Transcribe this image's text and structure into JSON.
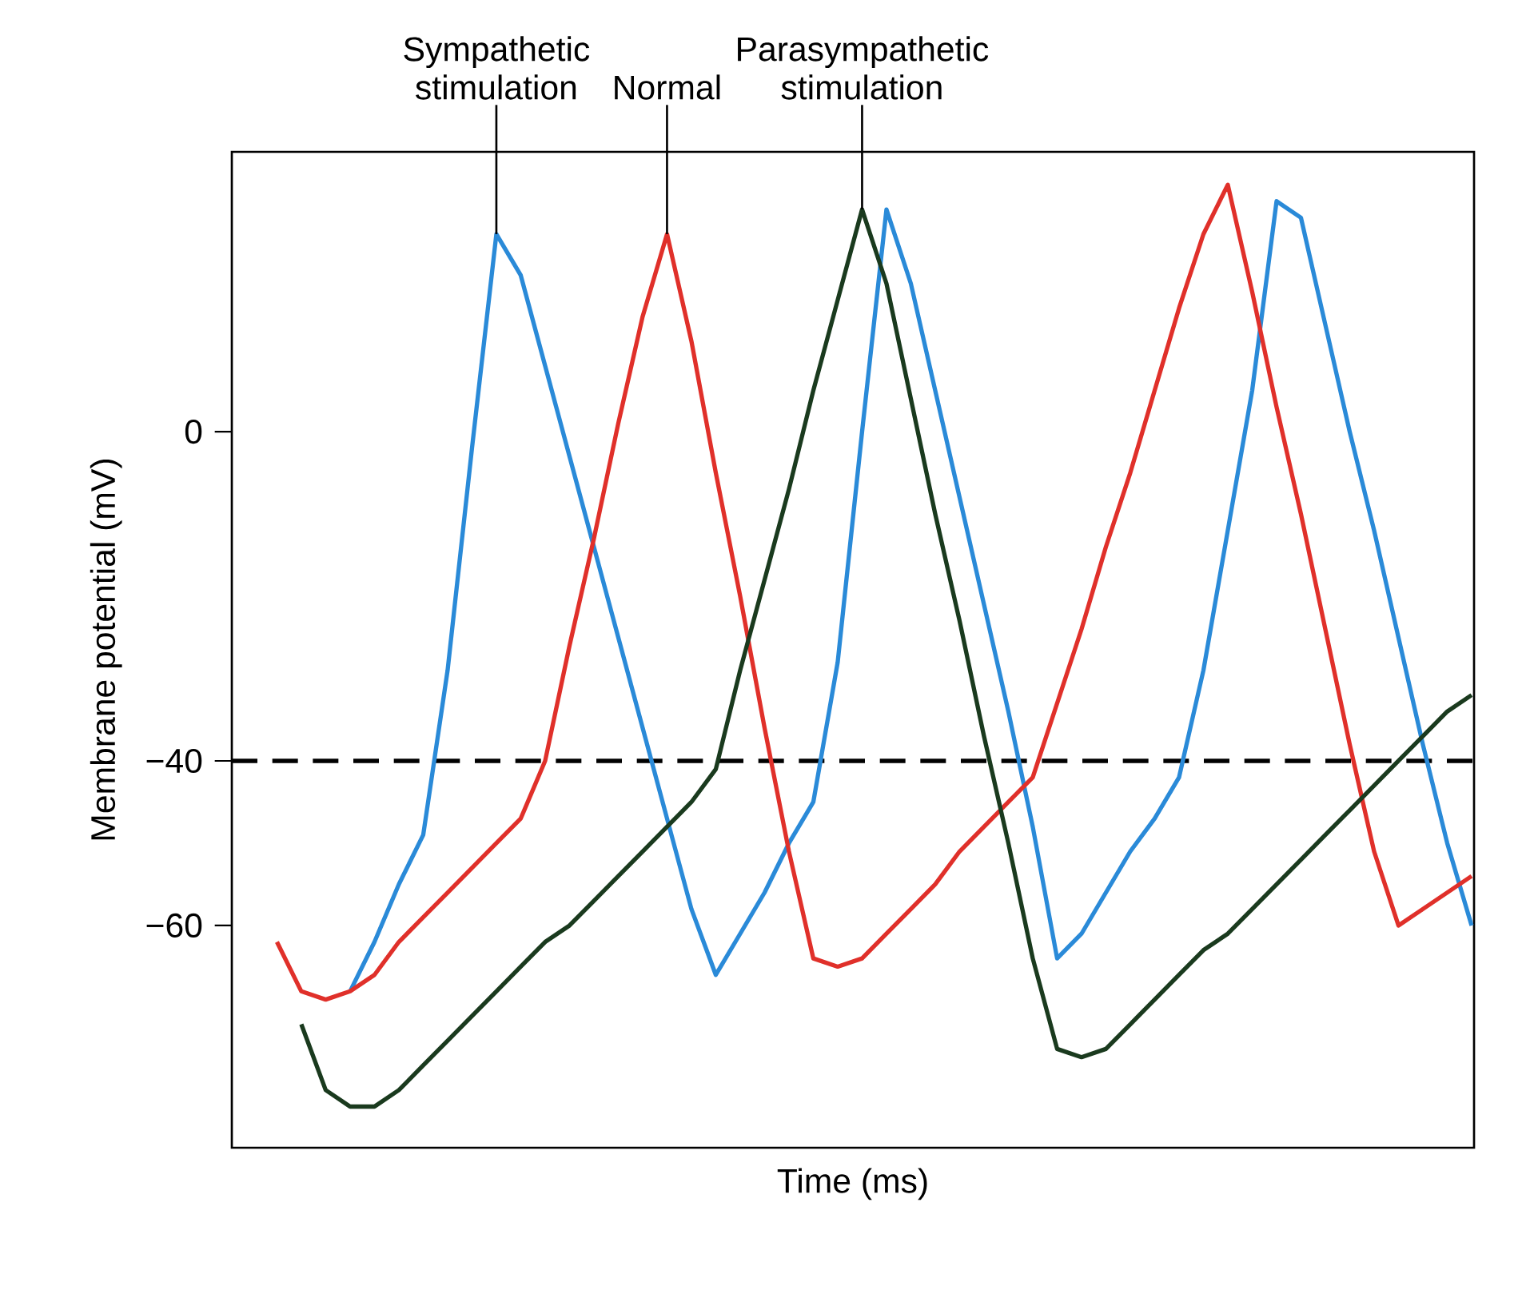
{
  "chart_data": {
    "type": "line",
    "xlabel": "Time (ms)",
    "ylabel": "Membrane potential (mV)",
    "ylim": [
      -87,
      34
    ],
    "categories": [
      null,
      null,
      null,
      null,
      null,
      null,
      null,
      null,
      null,
      null,
      null,
      null,
      null,
      null,
      null,
      null,
      null,
      null,
      null,
      null,
      null,
      null,
      null,
      null,
      null,
      null,
      null,
      null,
      null,
      null,
      null,
      null,
      null,
      null,
      null,
      null,
      null,
      null,
      null,
      null,
      null,
      null,
      null,
      null,
      null,
      null,
      null,
      null,
      null,
      null,
      null
    ],
    "yticks": [
      {
        "value": 0,
        "label": "0"
      },
      {
        "value": -40,
        "label": "−40"
      },
      {
        "value": -60,
        "label": "−60"
      }
    ],
    "tick_labels": "y",
    "marker": "none",
    "series": [
      {
        "color": "#2a8ad8",
        "values": [
          null,
          null,
          null,
          null,
          -68,
          -62,
          -55,
          -49,
          -29,
          -2,
          24,
          19,
          8,
          -3,
          -14,
          -25,
          -36,
          -47,
          -58,
          -66,
          -61,
          -56,
          -50,
          -45,
          -28,
          0,
          27,
          18,
          5,
          -8,
          -21,
          -34,
          -48,
          -64,
          -61,
          -56,
          -51,
          -47,
          -42,
          -29,
          -12,
          5,
          28,
          26,
          13,
          0,
          -12,
          -25,
          -38,
          -50,
          -60
        ]
      },
      {
        "color": "#e0302a",
        "values": [
          null,
          -62,
          -68,
          -69,
          -68,
          -66,
          -62,
          -59,
          -56,
          -53,
          -50,
          -47,
          -40,
          -26,
          -13,
          1,
          14,
          24,
          11,
          -5,
          -20,
          -36,
          -51,
          -64,
          -65,
          -64,
          -61,
          -58,
          -55,
          -51,
          -48,
          -45,
          -42,
          -33,
          -24,
          -14,
          -5,
          5,
          15,
          24,
          30,
          17,
          3,
          -10,
          -24,
          -38,
          -51,
          -60,
          -58,
          -56,
          -54
        ]
      },
      {
        "color": "#1a3a1e",
        "values": [
          null,
          null,
          -72,
          -80,
          -82,
          -82,
          -80,
          -77,
          -74,
          -71,
          -68,
          -65,
          -62,
          -60,
          -57,
          -54,
          -51,
          -48,
          -45,
          -41,
          -29,
          -18,
          -7,
          5,
          16,
          27,
          18,
          4,
          -10,
          -23,
          -37,
          -50,
          -64,
          -75,
          -76,
          -75,
          -72,
          -69,
          -66,
          -63,
          -61,
          -58,
          -55,
          -52,
          -49,
          -46,
          -43,
          -40,
          -37,
          -34,
          -32
        ]
      }
    ],
    "ref_lines": [
      {
        "axis": "y",
        "value": -40,
        "color": "#000000",
        "line_style": "dashed"
      }
    ],
    "annotations": [
      "Sympathetic stimulation",
      "Normal",
      "Parasympathetic stimulation"
    ]
  }
}
